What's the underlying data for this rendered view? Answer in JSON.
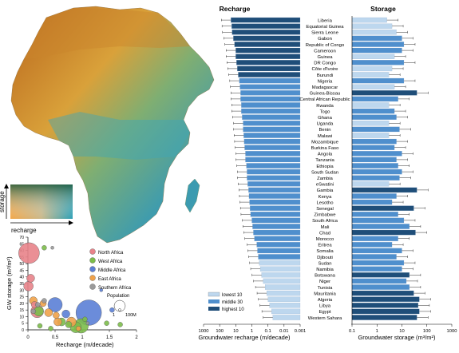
{
  "colors": {
    "dark": "#1f4e79",
    "mid": "#4f8fcd",
    "light": "#bdd7ee",
    "north_africa": "#e8838a",
    "west_africa": "#7cbd4a",
    "middle_africa": "#5b7fd6",
    "east_africa": "#f0a24a",
    "southern_africa": "#9a9a9a"
  },
  "map": {
    "legend_y_label": "storage",
    "legend_x_label": "recharge"
  },
  "chart_data": [
    {
      "type": "scatter",
      "xlabel": "Recharge (m/decade)",
      "ylabel": "GW storage (m³/m²)",
      "xlim": [
        0,
        2
      ],
      "ylim": [
        0,
        70
      ],
      "xticks": [
        "0",
        "0.5",
        "1",
        "1.5",
        "2"
      ],
      "yticks": [
        "0",
        "5",
        "10",
        "15",
        "20",
        "25",
        "30",
        "35",
        "40",
        "45",
        "50",
        "55",
        "60",
        "65",
        "70"
      ],
      "legend": {
        "regions": [
          "North Africa",
          "West Africa",
          "Middle Africa",
          "East Africa",
          "Southern Africa"
        ],
        "population_label": "Population",
        "size_labels": [
          "1",
          "100M"
        ]
      },
      "points": [
        {
          "x": 0.02,
          "y": 58,
          "r": 13,
          "region": "north_africa"
        },
        {
          "x": 0.05,
          "y": 39,
          "r": 5,
          "region": "north_africa"
        },
        {
          "x": 0.01,
          "y": 33,
          "r": 6,
          "region": "north_africa"
        },
        {
          "x": 0.12,
          "y": 19,
          "r": 4,
          "region": "north_africa"
        },
        {
          "x": 0.17,
          "y": 14,
          "r": 8,
          "region": "north_africa"
        },
        {
          "x": 0.3,
          "y": 62,
          "r": 3,
          "region": "west_africa"
        },
        {
          "x": 0.2,
          "y": 14,
          "r": 6,
          "region": "west_africa"
        },
        {
          "x": 0.22,
          "y": 3,
          "r": 3,
          "region": "west_africa"
        },
        {
          "x": 0.42,
          "y": 1,
          "r": 3,
          "region": "west_africa"
        },
        {
          "x": 0.62,
          "y": 6,
          "r": 5,
          "region": "west_africa"
        },
        {
          "x": 0.75,
          "y": 4,
          "r": 4,
          "region": "west_africa"
        },
        {
          "x": 0.88,
          "y": 2,
          "r": 7,
          "region": "west_africa"
        },
        {
          "x": 0.98,
          "y": 3,
          "r": 9,
          "region": "west_africa"
        },
        {
          "x": 1.05,
          "y": 8,
          "r": 3,
          "region": "west_africa"
        },
        {
          "x": 1.45,
          "y": 5,
          "r": 3,
          "region": "west_africa"
        },
        {
          "x": 1.7,
          "y": 4,
          "r": 3,
          "region": "west_africa"
        },
        {
          "x": 0.5,
          "y": 19,
          "r": 9,
          "region": "middle_africa"
        },
        {
          "x": 0.7,
          "y": 12,
          "r": 5,
          "region": "middle_africa"
        },
        {
          "x": 1.12,
          "y": 13,
          "r": 16,
          "region": "middle_africa"
        },
        {
          "x": 1.35,
          "y": 30,
          "r": 2,
          "region": "middle_africa"
        },
        {
          "x": 1.55,
          "y": 15,
          "r": 3,
          "region": "middle_africa"
        },
        {
          "x": 0.1,
          "y": 22,
          "r": 5,
          "region": "east_africa"
        },
        {
          "x": 0.28,
          "y": 20,
          "r": 4,
          "region": "east_africa"
        },
        {
          "x": 0.38,
          "y": 13,
          "r": 5,
          "region": "east_africa"
        },
        {
          "x": 0.52,
          "y": 11,
          "r": 4,
          "region": "east_africa"
        },
        {
          "x": 0.55,
          "y": 6,
          "r": 5,
          "region": "east_africa"
        },
        {
          "x": 0.8,
          "y": 6,
          "r": 6,
          "region": "east_africa"
        },
        {
          "x": 0.93,
          "y": 1,
          "r": 3,
          "region": "east_africa"
        },
        {
          "x": 0.45,
          "y": 62,
          "r": 2,
          "region": "southern_africa"
        },
        {
          "x": 0.18,
          "y": 19,
          "r": 3,
          "region": "southern_africa"
        },
        {
          "x": 0.3,
          "y": 22,
          "r": 3,
          "region": "southern_africa"
        },
        {
          "x": 0.1,
          "y": 14,
          "r": 3,
          "region": "southern_africa"
        },
        {
          "x": 1.1,
          "y": 5,
          "r": 2,
          "region": "southern_africa"
        }
      ]
    },
    {
      "type": "bar",
      "title": "Recharge",
      "xlabel": "Groundwater recharge (m/decade)",
      "scale": "log",
      "direction": "reversed",
      "xlim": [
        1000,
        0.001
      ],
      "xticks": [
        "1000",
        "100",
        "10",
        "1",
        "0.1",
        "0.01",
        "0.001"
      ],
      "legend": [
        "lowest 10",
        "middle 30",
        "highest 10"
      ],
      "categories": [
        "Liberia",
        "Equatorial Guinea",
        "Sierra Leone",
        "Gabon",
        "Republic of Congo",
        "Cameroon",
        "Guinea",
        "DR Congo",
        "Côte d'Ivoire",
        "Burundi",
        "Nigeria",
        "Madagascar",
        "Guinea-Bissau",
        "Central African Republic",
        "Rwanda",
        "Togo",
        "Ghana",
        "Uganda",
        "Benin",
        "Malawi",
        "Mozambique",
        "Burkina Faso",
        "Angola",
        "Tanzania",
        "Ethiopia",
        "South Sudan",
        "Zambia",
        "eSwatini",
        "Gambia",
        "Kenya",
        "Lesotho",
        "Senegal",
        "Zimbabwe",
        "South Africa",
        "Mali",
        "Chad",
        "Morocco",
        "Eritrea",
        "Somalia",
        "Djibouti",
        "Sudan",
        "Namibia",
        "Botswana",
        "Niger",
        "Tunisia",
        "Mauritania",
        "Algeria",
        "Libya",
        "Egypt",
        "Western Sahara"
      ],
      "values": [
        20,
        18,
        17,
        14,
        12,
        10,
        10,
        9,
        8,
        7,
        6,
        5.5,
        5,
        5,
        4.5,
        4.5,
        4,
        3.5,
        3.5,
        3.2,
        3,
        2.8,
        2.5,
        2.5,
        2.2,
        2,
        2,
        1.8,
        1.6,
        1.5,
        1.4,
        1.3,
        1.2,
        1,
        0.9,
        0.8,
        0.7,
        0.5,
        0.45,
        0.4,
        0.35,
        0.3,
        0.25,
        0.2,
        0.15,
        0.12,
        0.1,
        0.08,
        0.06,
        0.05
      ],
      "tiers": [
        "highest 10",
        "highest 10",
        "highest 10",
        "highest 10",
        "highest 10",
        "highest 10",
        "highest 10",
        "highest 10",
        "highest 10",
        "highest 10",
        "middle 30",
        "middle 30",
        "middle 30",
        "middle 30",
        "middle 30",
        "middle 30",
        "middle 30",
        "middle 30",
        "middle 30",
        "middle 30",
        "middle 30",
        "middle 30",
        "middle 30",
        "middle 30",
        "middle 30",
        "middle 30",
        "middle 30",
        "middle 30",
        "middle 30",
        "middle 30",
        "middle 30",
        "middle 30",
        "middle 30",
        "middle 30",
        "middle 30",
        "middle 30",
        "middle 30",
        "middle 30",
        "middle 30",
        "middle 30",
        "lowest 10",
        "lowest 10",
        "lowest 10",
        "lowest 10",
        "lowest 10",
        "lowest 10",
        "lowest 10",
        "lowest 10",
        "lowest 10",
        "lowest 10"
      ]
    },
    {
      "type": "bar",
      "title": "Storage",
      "xlabel": "Groundwater storage (m³/m²)",
      "scale": "log",
      "xlim": [
        0.1,
        1000
      ],
      "xticks": [
        "0.1",
        "1",
        "10",
        "100",
        "1000"
      ],
      "categories": [
        "Liberia",
        "Equatorial Guinea",
        "Sierra Leone",
        "Gabon",
        "Republic of Congo",
        "Cameroon",
        "Guinea",
        "DR Congo",
        "Côte d'Ivoire",
        "Burundi",
        "Nigeria",
        "Madagascar",
        "Guinea-Bissau",
        "Central African Republic",
        "Rwanda",
        "Togo",
        "Ghana",
        "Uganda",
        "Benin",
        "Malawi",
        "Mozambique",
        "Burkina Faso",
        "Angola",
        "Tanzania",
        "Ethiopia",
        "South Sudan",
        "Zambia",
        "eSwatini",
        "Gambia",
        "Kenya",
        "Lesotho",
        "Senegal",
        "Zimbabwe",
        "South Africa",
        "Mali",
        "Chad",
        "Morocco",
        "Eritrea",
        "Somalia",
        "Djibouti",
        "Sudan",
        "Namibia",
        "Botswana",
        "Niger",
        "Tunisia",
        "Mauritania",
        "Algeria",
        "Libya",
        "Egypt",
        "Western Sahara"
      ],
      "values": [
        2.5,
        4,
        6,
        10,
        12,
        10,
        5,
        12,
        4,
        3,
        12,
        5,
        40,
        7,
        3,
        5,
        6,
        3,
        8,
        3,
        6,
        5,
        10,
        6,
        7,
        10,
        8,
        3,
        40,
        6,
        4,
        30,
        7,
        12,
        20,
        35,
        7,
        4,
        10,
        6,
        12,
        10,
        20,
        15,
        20,
        30,
        50,
        45,
        50,
        40
      ],
      "tiers": [
        "lowest 10",
        "lowest 10",
        "lowest 10",
        "middle 30",
        "middle 30",
        "middle 30",
        "lowest 10",
        "middle 30",
        "lowest 10",
        "lowest 10",
        "middle 30",
        "lowest 10",
        "highest 10",
        "middle 30",
        "lowest 10",
        "middle 30",
        "middle 30",
        "lowest 10",
        "middle 30",
        "lowest 10",
        "middle 30",
        "middle 30",
        "middle 30",
        "middle 30",
        "middle 30",
        "middle 30",
        "middle 30",
        "lowest 10",
        "highest 10",
        "middle 30",
        "middle 30",
        "highest 10",
        "middle 30",
        "middle 30",
        "middle 30",
        "highest 10",
        "middle 30",
        "middle 30",
        "middle 30",
        "middle 30",
        "middle 30",
        "middle 30",
        "highest 10",
        "middle 30",
        "middle 30",
        "highest 10",
        "highest 10",
        "highest 10",
        "highest 10",
        "highest 10"
      ]
    }
  ]
}
